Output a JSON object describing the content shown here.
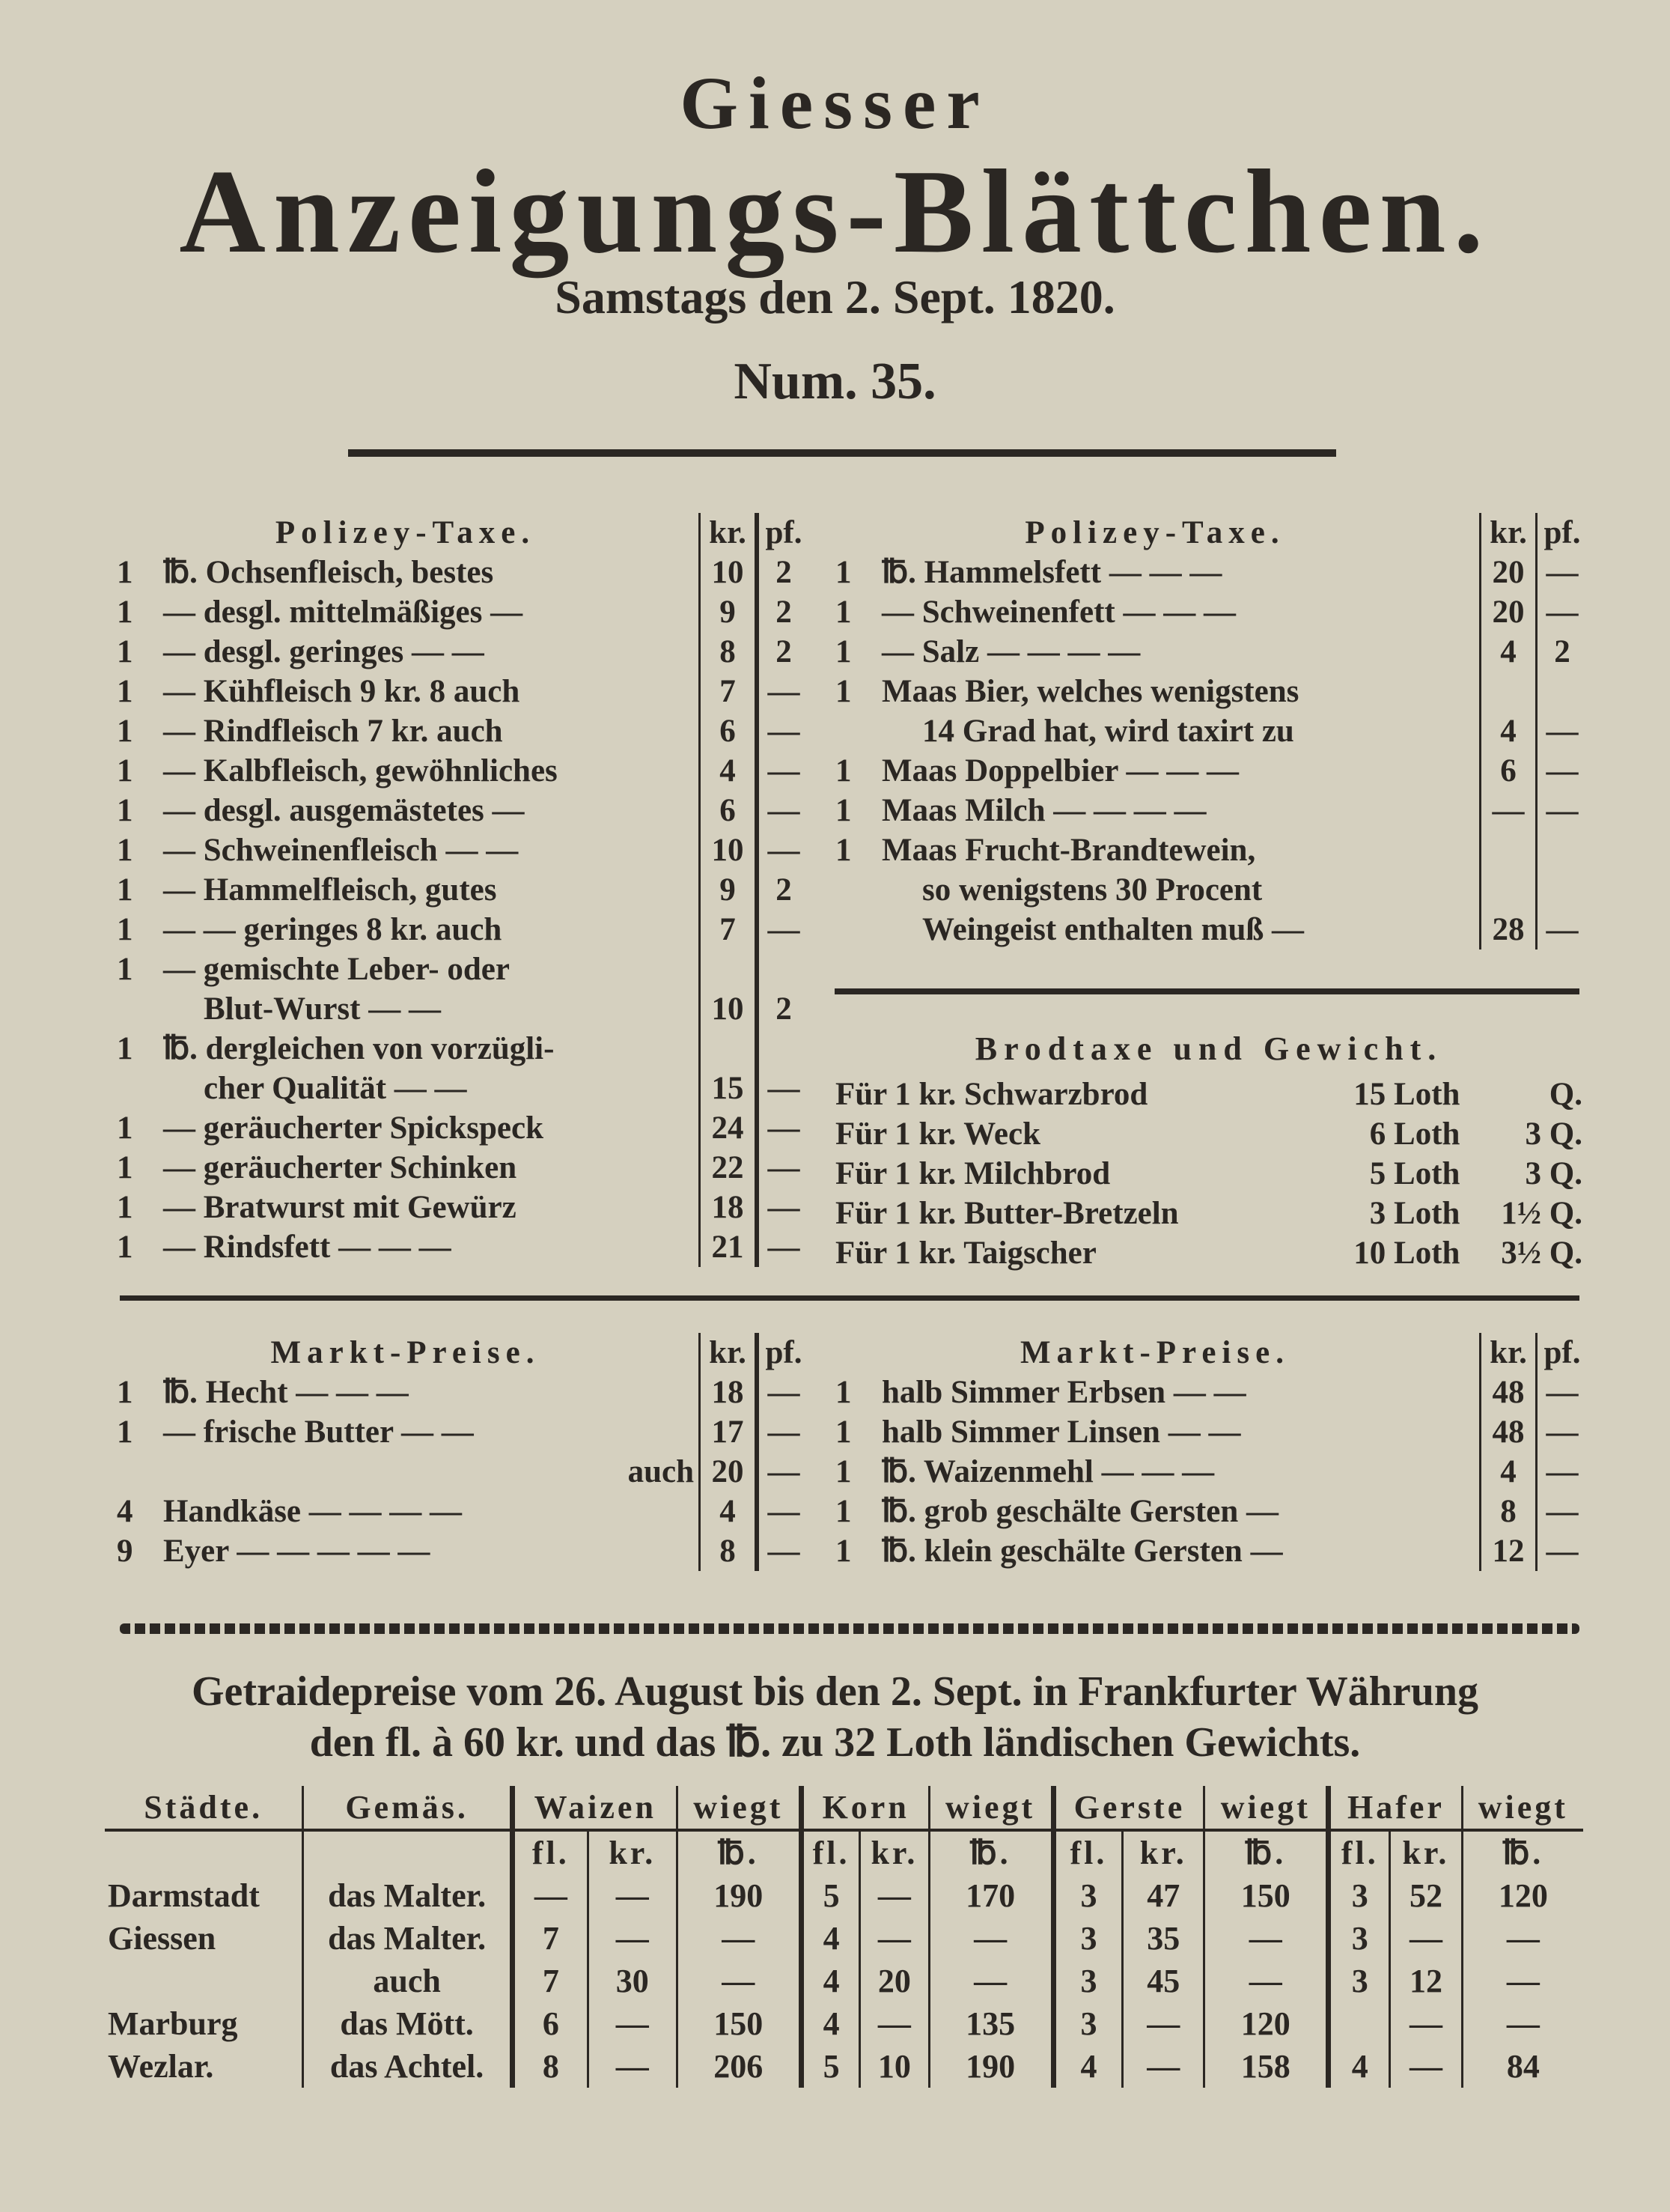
{
  "masthead": {
    "title_line1": "Giesser",
    "title_line2": "Anzeigungs-Blättchen.",
    "date": "Samstags den 2. Sept. 1820.",
    "number": "Num. 35."
  },
  "polizey_left": {
    "heading": "Polizey-Taxe.",
    "col_kr": "kr.",
    "col_pf": "pf.",
    "rows": [
      {
        "qty": "1",
        "item": "℔. Ochsenfleisch, bestes",
        "kr": "10",
        "pf": "2"
      },
      {
        "qty": "1",
        "item": "— desgl. mittelmäßiges —",
        "kr": "9",
        "pf": "2"
      },
      {
        "qty": "1",
        "item": "— desgl. geringes — —",
        "kr": "8",
        "pf": "2"
      },
      {
        "qty": "1",
        "item": "— Kühfleisch 9 kr. 8 auch",
        "kr": "7",
        "pf": "—"
      },
      {
        "qty": "1",
        "item": "— Rindfleisch 7 kr. auch",
        "kr": "6",
        "pf": "—"
      },
      {
        "qty": "1",
        "item": "— Kalbfleisch, gewöhnliches",
        "kr": "4",
        "pf": "—"
      },
      {
        "qty": "1",
        "item": "— desgl. ausgemästetes —",
        "kr": "6",
        "pf": "—"
      },
      {
        "qty": "1",
        "item": "— Schweinenfleisch — —",
        "kr": "10",
        "pf": "—"
      },
      {
        "qty": "1",
        "item": "— Hammelfleisch, gutes",
        "kr": "9",
        "pf": "2"
      },
      {
        "qty": "1",
        "item": "— — geringes 8 kr. auch",
        "kr": "7",
        "pf": "—"
      },
      {
        "qty": "1",
        "item": "— gemischte Leber- oder",
        "kr": "",
        "pf": ""
      },
      {
        "qty": "",
        "item": "Blut-Wurst — —",
        "kr": "10",
        "pf": "2"
      },
      {
        "qty": "1",
        "item": "℔. dergleichen von vorzügli-",
        "kr": "",
        "pf": ""
      },
      {
        "qty": "",
        "item": "cher Qualität — —",
        "kr": "15",
        "pf": "—"
      },
      {
        "qty": "1",
        "item": "— geräucherter Spickspeck",
        "kr": "24",
        "pf": "—"
      },
      {
        "qty": "1",
        "item": "— geräucherter Schinken",
        "kr": "22",
        "pf": "—"
      },
      {
        "qty": "1",
        "item": "— Bratwurst mit Gewürz",
        "kr": "18",
        "pf": "—"
      },
      {
        "qty": "1",
        "item": "— Rindsfett — — —",
        "kr": "21",
        "pf": "—"
      }
    ]
  },
  "polizey_right": {
    "heading": "Polizey-Taxe.",
    "col_kr": "kr.",
    "col_pf": "pf.",
    "rows": [
      {
        "qty": "1",
        "item": "℔. Hammelsfett — — —",
        "kr": "20",
        "pf": "—"
      },
      {
        "qty": "1",
        "item": "— Schweinenfett — — —",
        "kr": "20",
        "pf": "—"
      },
      {
        "qty": "1",
        "item": "— Salz — — — —",
        "kr": "4",
        "pf": "2"
      },
      {
        "qty": "1",
        "item": "Maas Bier, welches wenigstens",
        "kr": "",
        "pf": ""
      },
      {
        "qty": "",
        "item": "14 Grad hat, wird taxirt zu",
        "kr": "4",
        "pf": "—"
      },
      {
        "qty": "1",
        "item": "Maas Doppelbier — — —",
        "kr": "6",
        "pf": "—"
      },
      {
        "qty": "1",
        "item": "Maas Milch — — — —",
        "kr": "—",
        "pf": "—"
      },
      {
        "qty": "1",
        "item": "Maas Frucht-Brandtewein,",
        "kr": "",
        "pf": ""
      },
      {
        "qty": "",
        "item": "so wenigstens 30 Procent",
        "kr": "",
        "pf": ""
      },
      {
        "qty": "",
        "item": "Weingeist enthalten muß —",
        "kr": "28",
        "pf": "—"
      }
    ]
  },
  "brodtaxe": {
    "heading": "Brodtaxe und Gewicht.",
    "rows": [
      {
        "label": "Für 1 kr. Schwarzbrod",
        "loth": "15 Loth",
        "q": "Q."
      },
      {
        "label": "Für 1 kr. Weck",
        "loth": "6 Loth",
        "q": "3 Q."
      },
      {
        "label": "Für 1 kr. Milchbrod",
        "loth": "5 Loth",
        "q": "3 Q."
      },
      {
        "label": "Für 1 kr. Butter-Bretzeln",
        "loth": "3 Loth",
        "q": "1½ Q."
      },
      {
        "label": "Für 1 kr. Taigscher",
        "loth": "10 Loth",
        "q": "3½ Q."
      }
    ]
  },
  "markt_left": {
    "heading": "Markt-Preise.",
    "col_kr": "kr.",
    "col_pf": "pf.",
    "rows": [
      {
        "qty": "1",
        "item": "℔. Hecht — — —",
        "kr": "18",
        "pf": "—"
      },
      {
        "qty": "1",
        "item": "— frische Butter — —",
        "kr": "17",
        "pf": "—"
      },
      {
        "qty": "",
        "item": "auch",
        "kr": "20",
        "pf": "—"
      },
      {
        "qty": "4",
        "item": "Handkäse — — — —",
        "kr": "4",
        "pf": "—"
      },
      {
        "qty": "9",
        "item": "Eyer — — — — —",
        "kr": "8",
        "pf": "—"
      }
    ]
  },
  "markt_right": {
    "heading": "Markt-Preise.",
    "col_kr": "kr.",
    "col_pf": "pf.",
    "rows": [
      {
        "qty": "1",
        "item": "halb Simmer Erbsen — —",
        "kr": "48",
        "pf": "—"
      },
      {
        "qty": "1",
        "item": "halb Simmer Linsen — —",
        "kr": "48",
        "pf": "—"
      },
      {
        "qty": "1",
        "item": "℔. Waizenmehl — — —",
        "kr": "4",
        "pf": "—"
      },
      {
        "qty": "1",
        "item": "℔. grob geschälte Gersten —",
        "kr": "8",
        "pf": "—"
      },
      {
        "qty": "1",
        "item": "℔. klein geschälte Gersten —",
        "kr": "12",
        "pf": "—"
      }
    ]
  },
  "getraide": {
    "heading_line1": "Getraidepreise vom 26. August bis den 2. Sept. in Frankfurter Währung",
    "heading_line2": "den fl. à 60 kr. und das ℔. zu 32 Loth ländischen Gewichts.",
    "headers": {
      "staedte": "Städte.",
      "gemaes": "Gemäs.",
      "waizen": "Waizen",
      "korn": "Korn",
      "gerste": "Gerste",
      "hafer": "Hafer",
      "wiegt": "wiegt",
      "fl": "fl.",
      "kr": "kr.",
      "lb": "℔."
    },
    "rows": [
      {
        "stadt": "Darmstadt",
        "gemaes": "das Malter.",
        "waizen_fl": "—",
        "waizen_kr": "—",
        "waizen_wiegt": "190",
        "korn_fl": "5",
        "korn_kr": "—",
        "korn_wiegt": "170",
        "gerste_fl": "3",
        "gerste_kr": "47",
        "gerste_wiegt": "150",
        "hafer_fl": "3",
        "hafer_kr": "52",
        "hafer_wiegt": "120"
      },
      {
        "stadt": "Giessen",
        "gemaes": "das Malter.",
        "waizen_fl": "7",
        "waizen_kr": "—",
        "waizen_wiegt": "—",
        "korn_fl": "4",
        "korn_kr": "—",
        "korn_wiegt": "—",
        "gerste_fl": "3",
        "gerste_kr": "35",
        "gerste_wiegt": "—",
        "hafer_fl": "3",
        "hafer_kr": "—",
        "hafer_wiegt": "—"
      },
      {
        "stadt": "",
        "gemaes": "auch",
        "waizen_fl": "7",
        "waizen_kr": "30",
        "waizen_wiegt": "—",
        "korn_fl": "4",
        "korn_kr": "20",
        "korn_wiegt": "—",
        "gerste_fl": "3",
        "gerste_kr": "45",
        "gerste_wiegt": "—",
        "hafer_fl": "3",
        "hafer_kr": "12",
        "hafer_wiegt": "—"
      },
      {
        "stadt": "Marburg",
        "gemaes": "das Mött.",
        "waizen_fl": "6",
        "waizen_kr": "—",
        "waizen_wiegt": "150",
        "korn_fl": "4",
        "korn_kr": "—",
        "korn_wiegt": "135",
        "gerste_fl": "3",
        "gerste_kr": "—",
        "gerste_wiegt": "120",
        "hafer_fl": "",
        "hafer_kr": "—",
        "hafer_wiegt": "—"
      },
      {
        "stadt": "Wezlar.",
        "gemaes": "das Achtel.",
        "waizen_fl": "8",
        "waizen_kr": "—",
        "waizen_wiegt": "206",
        "korn_fl": "5",
        "korn_kr": "10",
        "korn_wiegt": "190",
        "gerste_fl": "4",
        "gerste_kr": "—",
        "gerste_wiegt": "158",
        "hafer_fl": "4",
        "hafer_kr": "—",
        "hafer_wiegt": "84"
      }
    ]
  }
}
